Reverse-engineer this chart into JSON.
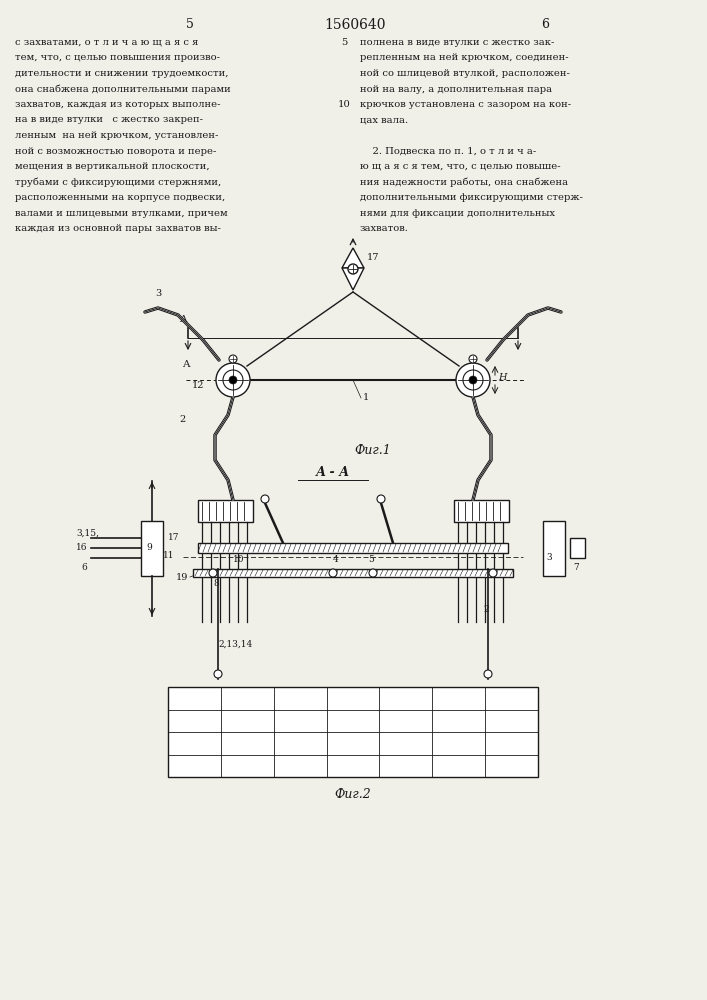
{
  "page_width": 7.07,
  "page_height": 10.0,
  "background_color": "#f0efe8",
  "text_color": "#1a1a1a",
  "header": {
    "left_page_num": "5",
    "center_patent": "1560640",
    "right_page_num": "6"
  },
  "left_column_text": [
    "с захватами, о т л и ч а ю щ а я с я",
    "тем, что, с целью повышения произво-",
    "дительности и снижении трудоемкости,",
    "она снабжена дополнительными парами",
    "захватов, каждая из которых выполне-",
    "на в виде втулки   с жестко закреп-",
    "ленным  на ней крючком, установлен-",
    "ной с возможностью поворота и пере-",
    "мещения в вертикальной плоскости,",
    "трубами с фиксирующими стержнями,",
    "расположенными на корпусе подвески,",
    "валами и шлицевыми втулками, причем",
    "каждая из основной пары захватов вы-"
  ],
  "right_column_text": [
    "полнена в виде втулки с жестко зак-",
    "репленным на ней крючком, соединен-",
    "ной со шлицевой втулкой, расположен-",
    "ной на валу, а дополнительная пара",
    "крючков установлена с зазором на кон-",
    "цах вала.",
    "",
    "    2. Подвеска по п. 1, о т л и ч а-",
    "ю щ а я с я тем, что, с целью повыше-",
    "ния надежности работы, она снабжена",
    "дополнительными фиксирующими стерж-",
    "нями для фиксации дополнительных",
    "захватов."
  ],
  "fig1_label": "Фиг.1",
  "fig2_label": "Фиг.2",
  "section_label": "А - А",
  "line_color": "#1a1a1a",
  "line_width": 1.0
}
